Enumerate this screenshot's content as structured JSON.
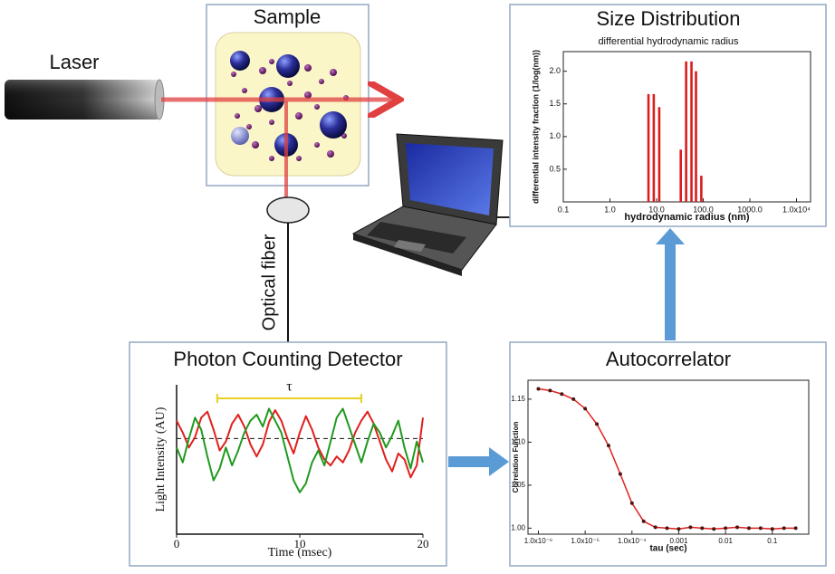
{
  "laser": {
    "label": "Laser"
  },
  "sample": {
    "title": "Sample"
  },
  "fiber": {
    "label": "Optical fiber"
  },
  "detector": {
    "title": "Photon Counting Detector",
    "chart": {
      "type": "line",
      "xlabel": "Time (msec)",
      "ylabel": "Light Intensity (AU)",
      "xlim": [
        0,
        20
      ],
      "xticks": [
        0,
        10,
        20
      ],
      "ylim": [
        0,
        10
      ],
      "x": [
        0,
        0.5,
        1,
        1.5,
        2,
        2.5,
        3,
        3.5,
        4,
        4.5,
        5,
        5.5,
        6,
        6.5,
        7,
        7.5,
        8,
        8.5,
        9,
        9.5,
        10,
        10.5,
        11,
        11.5,
        12,
        12.5,
        13,
        13.5,
        14,
        14.5,
        15,
        15.5,
        16,
        16.5,
        17,
        17.5,
        18,
        18.5,
        19,
        19.5,
        20
      ],
      "series": [
        {
          "color": "#e0201c",
          "values": [
            7.6,
            6.8,
            5.8,
            6.5,
            7.8,
            8.2,
            7.0,
            5.6,
            6.2,
            7.4,
            8.0,
            7.2,
            6.0,
            5.2,
            6.0,
            7.5,
            8.3,
            7.6,
            6.4,
            5.4,
            6.8,
            7.9,
            7.0,
            5.8,
            5.0,
            4.6,
            5.2,
            4.8,
            5.6,
            6.8,
            7.6,
            8.2,
            7.4,
            6.2,
            5.0,
            4.2,
            5.4,
            5.0,
            3.8,
            4.6,
            7.8
          ]
        },
        {
          "color": "#1f9a1f",
          "values": [
            5.8,
            4.8,
            6.4,
            7.8,
            7.0,
            5.2,
            3.6,
            4.4,
            5.8,
            4.6,
            5.6,
            6.8,
            7.6,
            8.0,
            7.2,
            8.4,
            7.6,
            6.8,
            5.2,
            3.6,
            2.8,
            3.4,
            4.8,
            5.6,
            4.6,
            6.2,
            7.8,
            8.4,
            7.2,
            6.0,
            4.8,
            6.2,
            7.4,
            6.8,
            5.8,
            6.6,
            7.6,
            5.8,
            4.4,
            6.2,
            4.8
          ]
        }
      ],
      "mean": 6.4,
      "tau_span": [
        3.3,
        15
      ],
      "tau_label": "τ"
    }
  },
  "autocorrelator": {
    "title": "Autocorrelator",
    "chart": {
      "type": "scatter",
      "xlabel": "tau (sec)",
      "ylabel": "Correlation Function",
      "log_x": true,
      "xlim": [
        6e-07,
        0.6
      ],
      "xticks": [
        {
          "value": 1e-06,
          "label": "1.0x10⁻⁶"
        },
        {
          "value": 1e-05,
          "label": "1.0x10⁻⁵"
        },
        {
          "value": 0.0001,
          "label": "1.0x10⁻⁴"
        },
        0.001,
        0.01,
        0.1
      ],
      "ylim": [
        0.993,
        1.172
      ],
      "yticks": [
        {
          "value": 1.0,
          "label": "1.00"
        },
        1.05,
        {
          "value": 1.1,
          "label": "1.10"
        },
        1.15
      ],
      "x": [
        1e-06,
        1.778e-06,
        3.162e-06,
        5.623e-06,
        1e-05,
        1.778e-05,
        3.162e-05,
        5.623e-05,
        0.0001,
        0.0001778,
        0.0003162,
        0.0005623,
        0.001,
        0.001778,
        0.003162,
        0.005623,
        0.01,
        0.01778,
        0.03162,
        0.05623,
        0.1,
        0.1778,
        0.3162
      ],
      "values": [
        1.162,
        1.16,
        1.156,
        1.15,
        1.139,
        1.121,
        1.096,
        1.063,
        1.029,
        1.008,
        1.001,
        1.0,
        0.999,
        1.001,
        1.0,
        0.999,
        1.0,
        1.001,
        1.0,
        1.0,
        0.999,
        1.0,
        1.0
      ],
      "point_color": "#4a1414",
      "fit_color": "#e0201c"
    }
  },
  "size_distribution": {
    "title": "Size Distribution",
    "chart": {
      "type": "bar",
      "subtitle": "differential hydrodynamic radius",
      "xlabel": "hydrodynamic radius (nm)",
      "ylabel": "differential intensity fraction (1/log(nm))",
      "log_x": true,
      "xlim": [
        0.1,
        20000
      ],
      "xticks": [
        0.1,
        {
          "value": 1,
          "label": "1.0"
        },
        {
          "value": 10,
          "label": "10.0"
        },
        {
          "value": 100,
          "label": "100.0"
        },
        {
          "value": 1000,
          "label": "1000.0"
        },
        {
          "value": 10000,
          "label": "1.0x10⁴"
        }
      ],
      "ylim": [
        0,
        2.3
      ],
      "yticks": [
        0.5,
        {
          "value": 1,
          "label": "1.0"
        },
        1.5,
        {
          "value": 2,
          "label": "2.0"
        }
      ],
      "x": [
        6.7,
        8.7,
        11.4,
        33,
        43,
        56,
        70,
        91
      ],
      "values": [
        1.65,
        1.65,
        1.45,
        0.8,
        2.15,
        2.15,
        2.0,
        0.4
      ],
      "color": "#d81e1e"
    }
  }
}
